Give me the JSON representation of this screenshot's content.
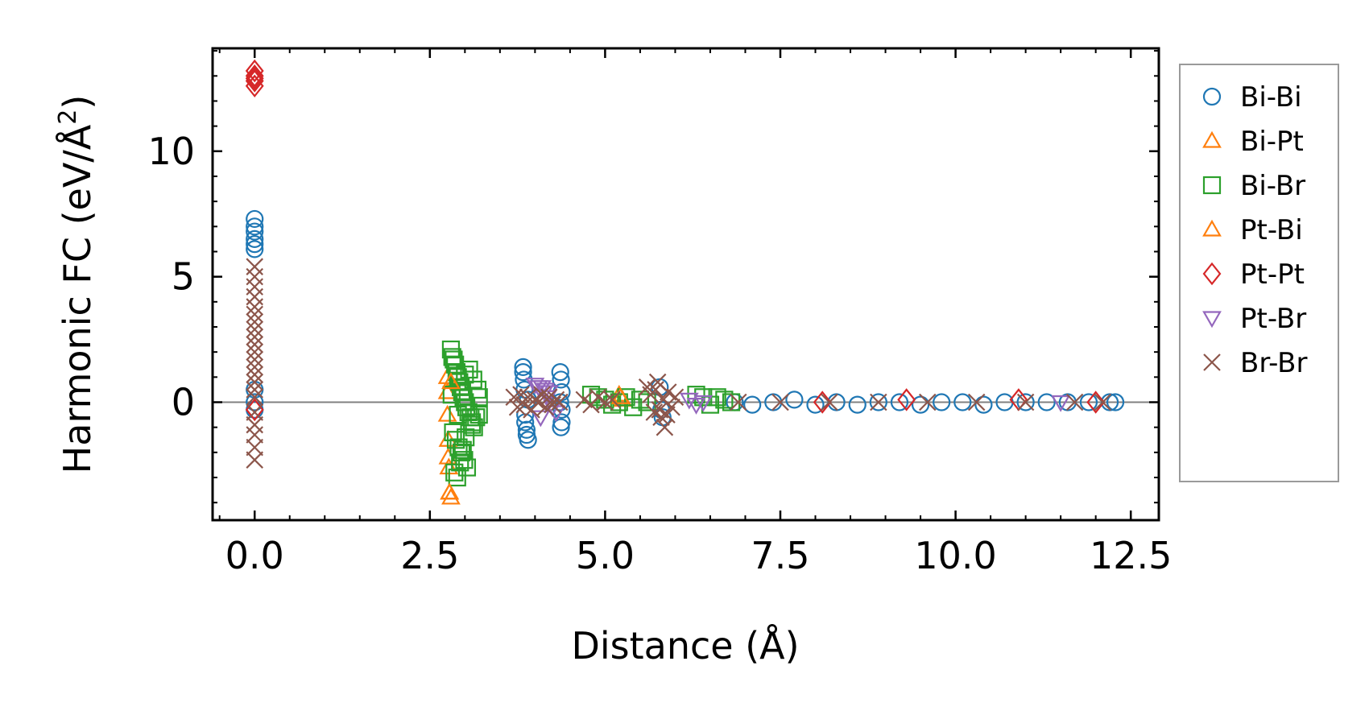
{
  "chart_data": {
    "type": "scatter",
    "xlabel": "Distance (Å)",
    "ylabel": {
      "prefix": "Harmonic FC (eV/Å",
      "sup": "2",
      "suffix": ")"
    },
    "xlim": [
      -0.6,
      12.9
    ],
    "ylim": [
      -4.7,
      14.1
    ],
    "xticks": [
      0.0,
      2.5,
      5.0,
      7.5,
      10.0,
      12.5
    ],
    "xtick_labels": [
      "0.0",
      "2.5",
      "5.0",
      "7.5",
      "10.0",
      "12.5"
    ],
    "xminor_step": 0.5,
    "yticks": [
      0,
      5,
      10
    ],
    "ytick_labels": [
      "0",
      "5",
      "10"
    ],
    "yminor_step": 1,
    "reference_line_y": 0,
    "legend_position": "right-outside",
    "series": [
      {
        "name": "Bi-Bi",
        "marker": "circle",
        "color": "#1f77b4",
        "x": [
          0.0,
          0.0,
          0.0,
          0.0,
          0.0,
          0.0,
          0.0,
          0.0,
          0.0,
          3.83,
          3.83,
          3.84,
          3.85,
          3.86,
          3.86,
          3.88,
          3.88,
          3.9,
          3.9,
          4.36,
          4.37,
          4.38,
          4.38,
          4.38,
          4.37,
          4.36,
          5.78,
          5.8,
          5.82,
          6.85,
          7.1,
          7.4,
          7.7,
          8.0,
          8.3,
          8.6,
          8.9,
          9.2,
          9.5,
          9.8,
          10.1,
          10.4,
          10.7,
          11.0,
          11.3,
          11.6,
          11.9,
          12.2,
          12.28
        ],
        "y": [
          7.3,
          7.0,
          6.8,
          6.5,
          6.3,
          6.1,
          0.5,
          0.0,
          -0.3,
          1.4,
          1.2,
          0.9,
          0.5,
          -0.5,
          -0.8,
          -1.1,
          -1.3,
          -1.5,
          0.1,
          1.2,
          0.9,
          0.4,
          -0.3,
          -0.8,
          -1.0,
          0.0,
          0.6,
          -0.3,
          -0.6,
          0.0,
          -0.1,
          0.0,
          0.1,
          -0.1,
          0.0,
          -0.1,
          0.0,
          0.0,
          -0.1,
          0.0,
          0.0,
          -0.1,
          0.0,
          0.0,
          0.0,
          0.0,
          0.0,
          0.0,
          0.0
        ]
      },
      {
        "name": "Bi-Pt",
        "marker": "triangle-up",
        "color": "#ff7f0e",
        "x": [
          2.75,
          2.75,
          2.75,
          2.76,
          2.76,
          2.77,
          2.78,
          2.8,
          5.2,
          5.25
        ],
        "y": [
          1.0,
          0.4,
          -0.5,
          -1.5,
          -2.2,
          -2.6,
          -3.6,
          -3.8,
          0.3,
          0.1
        ]
      },
      {
        "name": "Bi-Br",
        "marker": "square",
        "color": "#2ca02c",
        "x": [
          2.8,
          2.82,
          2.84,
          2.86,
          2.88,
          2.9,
          2.92,
          2.94,
          2.96,
          2.98,
          3.0,
          3.02,
          3.05,
          3.08,
          3.1,
          3.13,
          3.16,
          3.2,
          2.83,
          2.87,
          2.91,
          2.95,
          2.99,
          3.03,
          2.85,
          2.89,
          2.93,
          2.97,
          3.01,
          3.06,
          3.12,
          3.18,
          2.81,
          2.9,
          3.0,
          3.1,
          3.2,
          4.8,
          4.9,
          5.0,
          5.1,
          5.2,
          5.3,
          5.4,
          5.5,
          5.6,
          6.3,
          6.4,
          6.5,
          6.6,
          6.7,
          6.8
        ],
        "y": [
          2.1,
          1.8,
          1.7,
          1.5,
          1.2,
          1.0,
          0.8,
          0.6,
          0.4,
          0.2,
          0.0,
          -0.2,
          -0.4,
          -0.6,
          -0.8,
          -1.0,
          -0.6,
          -0.5,
          -1.2,
          -1.5,
          -1.8,
          -2.0,
          -2.3,
          -2.6,
          -2.8,
          -3.0,
          -2.4,
          -1.9,
          -1.4,
          1.3,
          0.9,
          0.5,
          0.3,
          -0.5,
          1.1,
          -0.9,
          0.2,
          0.3,
          0.2,
          0.1,
          -0.1,
          0.0,
          0.2,
          -0.2,
          0.1,
          0.0,
          0.3,
          0.2,
          -0.1,
          0.2,
          0.1,
          0.0
        ]
      },
      {
        "name": "Pt-Bi",
        "marker": "triangle-up",
        "color": "#ff7f0e",
        "x": [
          2.78,
          2.8,
          5.22
        ],
        "y": [
          -3.6,
          0.8,
          0.2
        ]
      },
      {
        "name": "Pt-Pt",
        "marker": "diamond",
        "color": "#d62728",
        "x": [
          0.0,
          0.0,
          0.0,
          0.0,
          0.0,
          0.0,
          10.9,
          9.3,
          8.1,
          12.0
        ],
        "y": [
          13.2,
          13.0,
          12.9,
          12.8,
          12.6,
          -0.3,
          0.1,
          0.1,
          0.0,
          0.0
        ]
      },
      {
        "name": "Pt-Br",
        "marker": "triangle-down",
        "color": "#9467bd",
        "x": [
          4.0,
          4.05,
          4.1,
          4.15,
          4.2,
          4.25,
          4.3,
          4.08,
          4.18,
          6.2,
          6.3,
          6.4,
          11.5
        ],
        "y": [
          0.7,
          0.6,
          0.6,
          0.5,
          0.4,
          -0.2,
          -0.4,
          -0.6,
          0.2,
          0.1,
          -0.1,
          0.0,
          0.0
        ]
      },
      {
        "name": "Br-Br",
        "marker": "x",
        "color": "#8c564b",
        "x": [
          0.0,
          0.0,
          0.0,
          0.0,
          0.0,
          0.0,
          0.0,
          0.0,
          0.0,
          0.0,
          0.0,
          0.0,
          0.0,
          0.0,
          0.0,
          0.0,
          0.0,
          0.0,
          0.0,
          0.0,
          0.0,
          0.0,
          3.7,
          3.75,
          3.8,
          3.85,
          3.9,
          3.95,
          4.0,
          4.05,
          4.1,
          4.15,
          4.2,
          4.25,
          4.3,
          4.35,
          4.7,
          4.8,
          4.9,
          5.0,
          5.1,
          5.6,
          5.65,
          5.7,
          5.75,
          5.8,
          5.85,
          5.9,
          5.95,
          6.0,
          5.72,
          5.78,
          5.83,
          5.88,
          6.9,
          7.5,
          8.2,
          8.9,
          9.6,
          10.3,
          11.0,
          11.7,
          12.1
        ],
        "y": [
          5.4,
          5.0,
          4.6,
          4.2,
          3.8,
          3.5,
          3.2,
          2.9,
          2.6,
          2.3,
          2.0,
          1.7,
          1.4,
          1.1,
          0.8,
          0.5,
          0.2,
          -0.4,
          -0.9,
          -1.3,
          -1.8,
          -2.3,
          0.2,
          -0.2,
          0.3,
          -0.1,
          0.2,
          -0.3,
          0.1,
          0.0,
          0.3,
          -0.2,
          0.2,
          -0.1,
          0.1,
          0.0,
          0.1,
          -0.1,
          0.2,
          0.0,
          0.1,
          0.6,
          0.3,
          -0.4,
          0.8,
          -0.6,
          -1.0,
          0.4,
          -0.2,
          0.2,
          0.5,
          -0.3,
          0.1,
          -0.5,
          0.0,
          0.0,
          0.0,
          0.0,
          0.0,
          0.0,
          0.0,
          0.0,
          0.0
        ]
      }
    ]
  }
}
